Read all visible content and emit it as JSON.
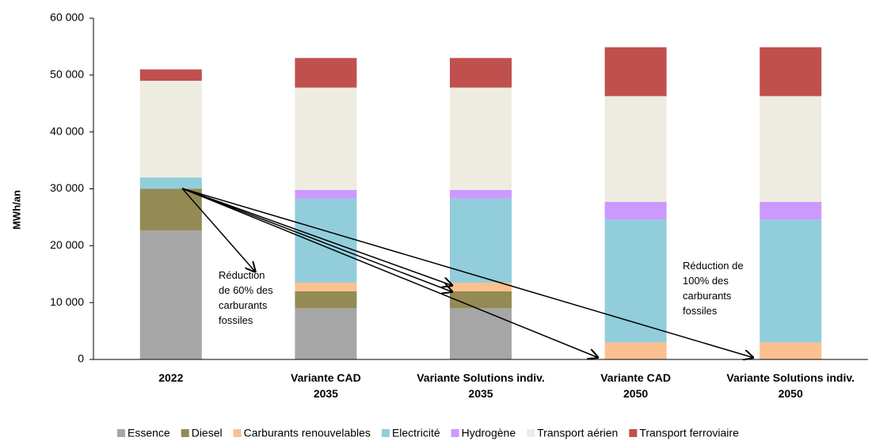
{
  "chart_data": {
    "type": "stacked_bar",
    "y_label": "MWh/an",
    "categories": [
      [
        "2022"
      ],
      [
        "Variante CAD",
        "2035"
      ],
      [
        "Variante Solutions indiv.",
        "2035"
      ],
      [
        "Variante CAD",
        "2050"
      ],
      [
        "Variante Solutions indiv.",
        "2050"
      ]
    ],
    "series": [
      {
        "name": "Essence",
        "color": "#a6a6a6",
        "values": [
          22700,
          9000,
          9000,
          0,
          0
        ]
      },
      {
        "name": "Diesel",
        "color": "#948a54",
        "values": [
          7300,
          3000,
          3000,
          0,
          0
        ]
      },
      {
        "name": "Carburants renouvelables",
        "color": "#fac090",
        "values": [
          0,
          1500,
          1500,
          3000,
          3000
        ]
      },
      {
        "name": "Electricité",
        "color": "#92cddc",
        "values": [
          2000,
          14800,
          14800,
          21600,
          21600
        ]
      },
      {
        "name": "Hydrogène",
        "color": "#cc99ff",
        "values": [
          0,
          1500,
          1500,
          3100,
          3100
        ]
      },
      {
        "name": "Transport aérien",
        "color": "#eeece1",
        "values": [
          17000,
          18000,
          18000,
          18600,
          18600
        ]
      },
      {
        "name": "Transport ferroviaire",
        "color": "#c0504d",
        "values": [
          2000,
          5200,
          5200,
          8600,
          8600
        ]
      }
    ],
    "ylim": [
      0,
      60000
    ],
    "yticks": [
      0,
      {
        "value": 10000,
        "label": "10 000"
      },
      {
        "value": 20000,
        "label": "20 000"
      },
      {
        "value": 30000,
        "label": "30 000"
      },
      {
        "value": 40000,
        "label": "40 000"
      },
      {
        "value": 50000,
        "label": "50 000"
      },
      {
        "value": 60000,
        "label": "60 000"
      }
    ],
    "annotations": [
      [
        "Réduction",
        "de 60% des",
        "carburants",
        "fossiles"
      ],
      [
        "Réduction de",
        "100% des",
        "carburants",
        "fossiles"
      ]
    ]
  }
}
